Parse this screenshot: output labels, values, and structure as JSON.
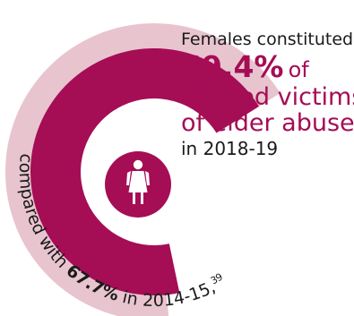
{
  "headline": {
    "intro": "Females constituted",
    "percent": "69.4%",
    "of_word": "of",
    "line2": "alleged victims",
    "line3": "of elder abuse,",
    "period": "in 2018-19"
  },
  "comparison": {
    "prefix": "compared with ",
    "percent": "67.7%",
    "suffix": " in 2014-15,",
    "footnote": "39"
  },
  "icon": {
    "name": "female-person-icon"
  },
  "colors": {
    "primary": "#a50d55",
    "secondary": "#e8c4cf",
    "text": "#1a1a1a"
  },
  "chart_data": {
    "type": "pie",
    "series": [
      {
        "values": [
          69.4
        ]
      },
      {
        "values": [
          67.7
        ]
      }
    ]
  }
}
